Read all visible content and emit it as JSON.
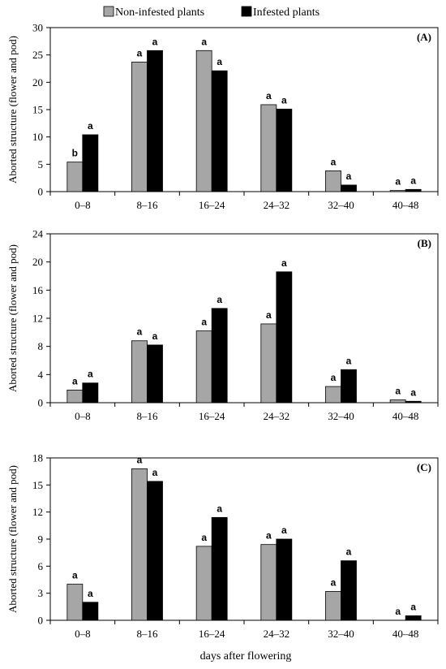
{
  "legend": {
    "non_infested": "Non-infested plants",
    "infested": "Infested plants",
    "non_infested_color": "#a6a6a6",
    "infested_color": "#000000"
  },
  "xlabel": "days after flowering",
  "chart_data": [
    {
      "type": "bar",
      "panel_label": "(A)",
      "ylabel": "Aborted structure (flower and pod)",
      "categories": [
        "0–8",
        "8–16",
        "16–24",
        "24–32",
        "32–40",
        "40–48"
      ],
      "ylim": [
        0,
        30
      ],
      "yticks": [
        0,
        5,
        10,
        15,
        20,
        25,
        30
      ],
      "series": [
        {
          "name": "Non-infested plants",
          "values": [
            5.4,
            23.7,
            25.8,
            15.9,
            3.8,
            0.2
          ],
          "letters": [
            "b",
            "a",
            "a",
            "a",
            "a",
            "a"
          ]
        },
        {
          "name": "Infested plants",
          "values": [
            10.4,
            25.8,
            22.1,
            15.1,
            1.2,
            0.4
          ],
          "letters": [
            "a",
            "a",
            "a",
            "a",
            "a",
            "a"
          ]
        }
      ]
    },
    {
      "type": "bar",
      "panel_label": "(B)",
      "ylabel": "Aborted structure (flower and pod)",
      "categories": [
        "0–8",
        "8–16",
        "16–24",
        "24–32",
        "32–40",
        "40–48"
      ],
      "ylim": [
        0,
        24
      ],
      "yticks": [
        0,
        4,
        8,
        12,
        16,
        20,
        24
      ],
      "series": [
        {
          "name": "Non-infested plants",
          "values": [
            1.8,
            8.8,
            10.2,
            11.2,
            2.3,
            0.4
          ],
          "letters": [
            "a",
            "a",
            "a",
            "a",
            "a",
            "a"
          ]
        },
        {
          "name": "Infested plants",
          "values": [
            2.8,
            8.2,
            13.4,
            18.6,
            4.7,
            0.2
          ],
          "letters": [
            "a",
            "a",
            "a",
            "a",
            "a",
            "a"
          ]
        }
      ]
    },
    {
      "type": "bar",
      "panel_label": "(C)",
      "ylabel": "Aborted structure (flower and pod)",
      "categories": [
        "0–8",
        "8–16",
        "16–24",
        "24–32",
        "32–40",
        "40–48"
      ],
      "ylim": [
        0,
        18
      ],
      "yticks": [
        0,
        3,
        6,
        9,
        12,
        15,
        18
      ],
      "series": [
        {
          "name": "Non-infested plants",
          "values": [
            4.0,
            16.8,
            8.2,
            8.4,
            3.2,
            0.0
          ],
          "letters": [
            "a",
            "a",
            "a",
            "a",
            "a",
            "a"
          ]
        },
        {
          "name": "Infested plants",
          "values": [
            2.0,
            15.4,
            11.4,
            9.0,
            6.6,
            0.5
          ],
          "letters": [
            "a",
            "a",
            "a",
            "a",
            "a",
            "a"
          ]
        }
      ]
    }
  ]
}
